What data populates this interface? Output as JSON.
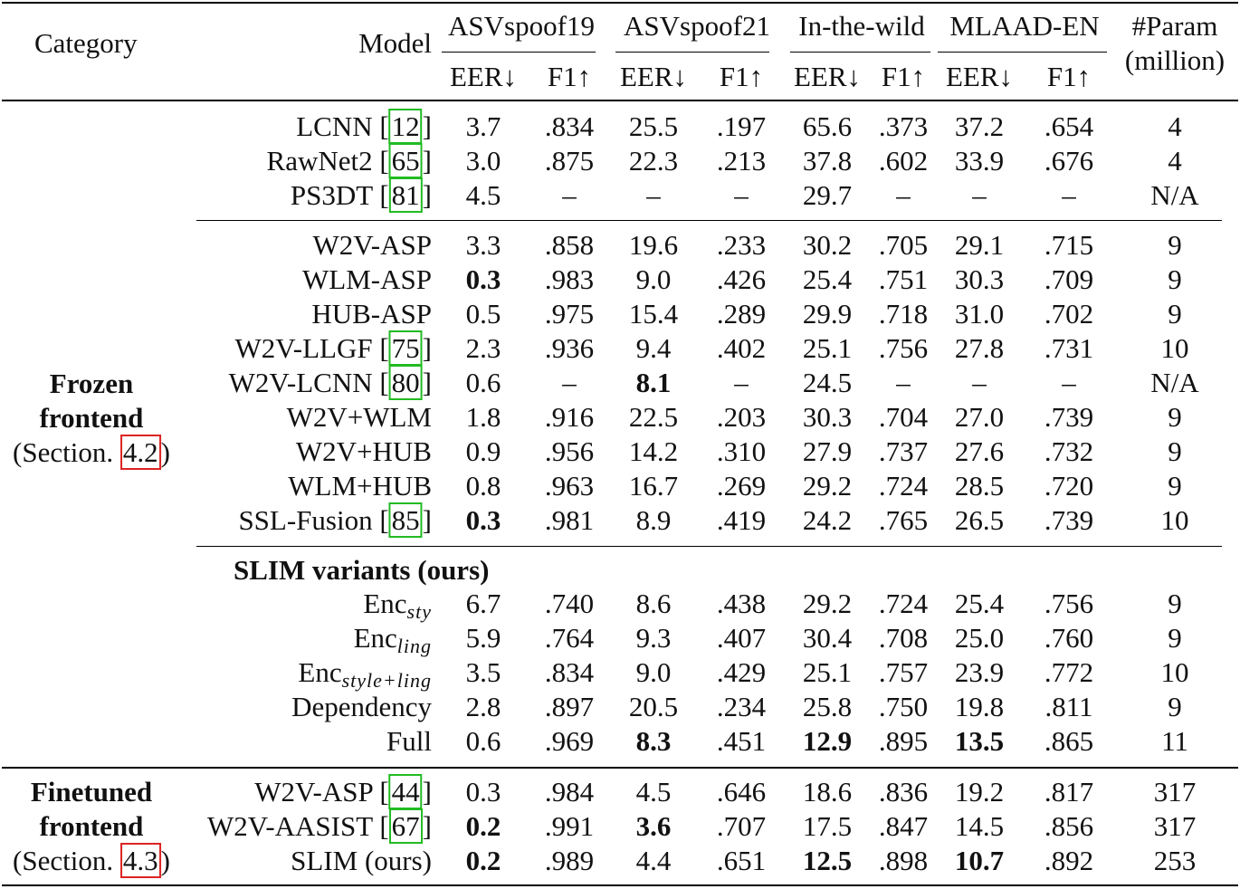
{
  "header": {
    "category": "Category",
    "model": "Model",
    "datasets": [
      "ASVspoof19",
      "ASVspoof21",
      "In-the-wild",
      "MLAAD-EN"
    ],
    "eer": "EER↓",
    "f1": "F1↑",
    "param_line1": "#Param",
    "param_line2": "(million)"
  },
  "groups": {
    "frozen": {
      "line1": "Frozen",
      "line2": "frontend",
      "section_prefix": "(Section. ",
      "section_ref": "4.2",
      "section_suffix": ")"
    },
    "finetuned": {
      "line1": "Finetuned",
      "line2": "frontend",
      "section_prefix": "(Section. ",
      "section_ref": "4.3",
      "section_suffix": ")"
    }
  },
  "slim_heading": "SLIM variants (ours)",
  "rows": [
    {
      "name": "LCNN [",
      "ref": "12",
      "close": "]",
      "v": [
        "3.7",
        ".834",
        "25.5",
        ".197",
        "65.6",
        ".373",
        "37.2",
        ".654"
      ],
      "param": "4"
    },
    {
      "name": "RawNet2 [",
      "ref": "65",
      "close": "]",
      "v": [
        "3.0",
        ".875",
        "22.3",
        ".213",
        "37.8",
        ".602",
        "33.9",
        ".676"
      ],
      "param": "4"
    },
    {
      "name": "PS3DT [",
      "ref": "81",
      "close": "]",
      "v": [
        "4.5",
        "–",
        "–",
        "–",
        "29.7",
        "–",
        "–",
        "–"
      ],
      "param": "N/A"
    },
    {
      "name": "W2V-ASP",
      "v": [
        "3.3",
        ".858",
        "19.6",
        ".233",
        "30.2",
        ".705",
        "29.1",
        ".715"
      ],
      "param": "9"
    },
    {
      "name": "WLM-ASP",
      "v": [
        "0.3",
        ".983",
        "9.0",
        ".426",
        "25.4",
        ".751",
        "30.3",
        ".709"
      ],
      "param": "9",
      "bold": [
        0
      ]
    },
    {
      "name": "HUB-ASP",
      "v": [
        "0.5",
        ".975",
        "15.4",
        ".289",
        "29.9",
        ".718",
        "31.0",
        ".702"
      ],
      "param": "9"
    },
    {
      "name": "W2V-LLGF [",
      "ref": "75",
      "close": "]",
      "v": [
        "2.3",
        ".936",
        "9.4",
        ".402",
        "25.1",
        ".756",
        "27.8",
        ".731"
      ],
      "param": "10"
    },
    {
      "name": "W2V-LCNN [",
      "ref": "80",
      "close": "]",
      "v": [
        "0.6",
        "–",
        "8.1",
        "–",
        "24.5",
        "–",
        "–",
        "–"
      ],
      "param": "N/A",
      "bold": [
        2
      ]
    },
    {
      "name": "W2V+WLM",
      "v": [
        "1.8",
        ".916",
        "22.5",
        ".203",
        "30.3",
        ".704",
        "27.0",
        ".739"
      ],
      "param": "9"
    },
    {
      "name": "W2V+HUB",
      "v": [
        "0.9",
        ".956",
        "14.2",
        ".310",
        "27.9",
        ".737",
        "27.6",
        ".732"
      ],
      "param": "9"
    },
    {
      "name": "WLM+HUB",
      "v": [
        "0.8",
        ".963",
        "16.7",
        ".269",
        "29.2",
        ".724",
        "28.5",
        ".720"
      ],
      "param": "9"
    },
    {
      "name": "SSL-Fusion [",
      "ref": "85",
      "close": "]",
      "v": [
        "0.3",
        ".981",
        "8.9",
        ".419",
        "24.2",
        ".765",
        "26.5",
        ".739"
      ],
      "param": "10",
      "bold": [
        0
      ]
    },
    {
      "name": "Enc",
      "sub": "sty",
      "v": [
        "6.7",
        ".740",
        "8.6",
        ".438",
        "29.2",
        ".724",
        "25.4",
        ".756"
      ],
      "param": "9"
    },
    {
      "name": "Enc",
      "sub": "ling",
      "v": [
        "5.9",
        ".764",
        "9.3",
        ".407",
        "30.4",
        ".708",
        "25.0",
        ".760"
      ],
      "param": "9"
    },
    {
      "name": "Enc",
      "sub": "style+ling",
      "v": [
        "3.5",
        ".834",
        "9.0",
        ".429",
        "25.1",
        ".757",
        "23.9",
        ".772"
      ],
      "param": "10"
    },
    {
      "name": "Dependency",
      "v": [
        "2.8",
        ".897",
        "20.5",
        ".234",
        "25.8",
        ".750",
        "19.8",
        ".811"
      ],
      "param": "9"
    },
    {
      "name": "Full",
      "v": [
        "0.6",
        ".969",
        "8.3",
        ".451",
        "12.9",
        ".895",
        "13.5",
        ".865"
      ],
      "param": "11",
      "bold": [
        2,
        4,
        6
      ]
    },
    {
      "name": "W2V-ASP [",
      "ref": "44",
      "close": "]",
      "v": [
        "0.3",
        ".984",
        "4.5",
        ".646",
        "18.6",
        ".836",
        "19.2",
        ".817"
      ],
      "param": "317"
    },
    {
      "name": "W2V-AASIST [",
      "ref": "67",
      "close": "]",
      "v": [
        "0.2",
        ".991",
        "3.6",
        ".707",
        "17.5",
        ".847",
        "14.5",
        ".856"
      ],
      "param": "317",
      "bold": [
        0,
        2
      ]
    },
    {
      "name": "SLIM (ours)",
      "v": [
        "0.2",
        ".989",
        "4.4",
        ".651",
        "12.5",
        ".898",
        "10.7",
        ".892"
      ],
      "param": "253",
      "bold": [
        0,
        4,
        6
      ]
    }
  ]
}
